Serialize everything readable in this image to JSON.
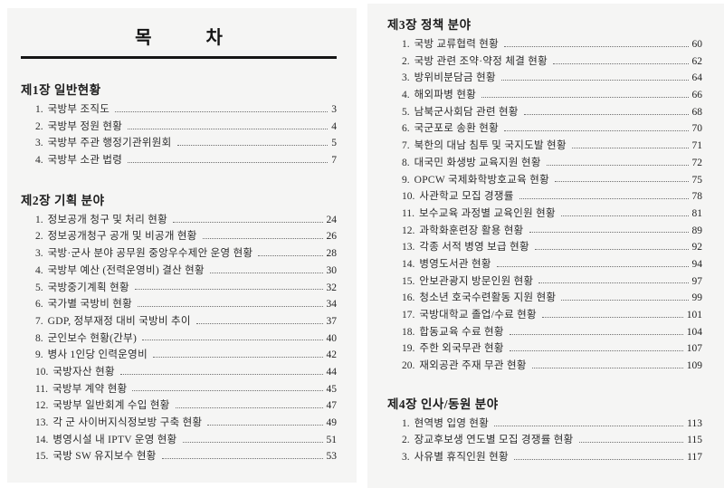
{
  "title": "목            차",
  "colors": {
    "paper": "#f5f5f4",
    "background": "#ffffff",
    "text": "#2b2b2b",
    "rule": "#161616"
  },
  "left_page": {
    "sections": [
      {
        "heading": "제1장 일반현황",
        "items": [
          {
            "no": "1.",
            "title": "국방부 조직도",
            "page": "3"
          },
          {
            "no": "2.",
            "title": "국방부 정원 현황",
            "page": "4"
          },
          {
            "no": "3.",
            "title": "국방부 주관 행정기관위원회",
            "page": "5"
          },
          {
            "no": "4.",
            "title": "국방부 소관 법령",
            "page": "7"
          }
        ]
      },
      {
        "heading": "제2장 기획 분야",
        "items": [
          {
            "no": "1.",
            "title": "정보공개 청구 및 처리 현황",
            "page": "24"
          },
          {
            "no": "2.",
            "title": "정보공개청구 공개 및 비공개 현황",
            "page": "26"
          },
          {
            "no": "3.",
            "title": "국방·군사 분야 공무원 중앙우수제안 운영 현황",
            "page": "28"
          },
          {
            "no": "4.",
            "title": "국방부 예산 (전력운영비) 결산 현황",
            "page": "30"
          },
          {
            "no": "5.",
            "title": "국방중기계획 현황",
            "page": "32"
          },
          {
            "no": "6.",
            "title": "국가별 국방비 현황",
            "page": "34"
          },
          {
            "no": "7.",
            "title": "GDP, 정부재정 대비 국방비 추이",
            "page": "37"
          },
          {
            "no": "8.",
            "title": "군인보수 현황(간부)",
            "page": "40"
          },
          {
            "no": "9.",
            "title": "병사 1인당 인력운영비",
            "page": "42"
          },
          {
            "no": "10.",
            "title": "국방자산 현황",
            "page": "44"
          },
          {
            "no": "11.",
            "title": "국방부 계약 현황",
            "page": "45"
          },
          {
            "no": "12.",
            "title": "국방부 일반회계 수입 현황",
            "page": "47"
          },
          {
            "no": "13.",
            "title": "각 군 사이버지식정보방 구축 현황",
            "page": "49"
          },
          {
            "no": "14.",
            "title": "병영시설 내 IPTV 운영 현황",
            "page": "51"
          },
          {
            "no": "15.",
            "title": "국방 SW 유지보수 현황",
            "page": "53"
          }
        ]
      }
    ]
  },
  "right_page": {
    "sections": [
      {
        "heading": "제3장 정책 분야",
        "items": [
          {
            "no": "1.",
            "title": "국방 교류협력 현황",
            "page": "60"
          },
          {
            "no": "2.",
            "title": "국방 관련 조약·약정 체결 현황",
            "page": "62"
          },
          {
            "no": "3.",
            "title": "방위비분담금 현황",
            "page": "64"
          },
          {
            "no": "4.",
            "title": "해외파병 현황",
            "page": "66"
          },
          {
            "no": "5.",
            "title": "남북군사회담 관련 현황",
            "page": "68"
          },
          {
            "no": "6.",
            "title": "국군포로 송환 현황",
            "page": "70"
          },
          {
            "no": "7.",
            "title": "북한의 대남 침투 및 국지도발 현황",
            "page": "71"
          },
          {
            "no": "8.",
            "title": "대국민 화생방 교육지원 현황",
            "page": "72"
          },
          {
            "no": "9.",
            "title": "OPCW 국제화학방호교육 현황",
            "page": "75"
          },
          {
            "no": "10.",
            "title": "사관학교 모집 경쟁률",
            "page": "78"
          },
          {
            "no": "11.",
            "title": "보수교육 과정별 교육인원 현황",
            "page": "81"
          },
          {
            "no": "12.",
            "title": "과학화훈련장 활용 현황",
            "page": "89"
          },
          {
            "no": "13.",
            "title": "각종 서적 병영 보급 현황",
            "page": "92"
          },
          {
            "no": "14.",
            "title": "병영도서관 현황",
            "page": "94"
          },
          {
            "no": "15.",
            "title": "안보관광지 방문인원 현황",
            "page": "97"
          },
          {
            "no": "16.",
            "title": "청소년 호국수련활동 지원 현황",
            "page": "99"
          },
          {
            "no": "17.",
            "title": "국방대학교 졸업/수료 현황",
            "page": "101"
          },
          {
            "no": "18.",
            "title": "합동교육 수료 현황",
            "page": "104"
          },
          {
            "no": "19.",
            "title": "주한 외국무관 현황",
            "page": "107"
          },
          {
            "no": "20.",
            "title": "재외공관 주재 무관 현황",
            "page": "109"
          }
        ]
      },
      {
        "heading": "제4장 인사/동원 분야",
        "items": [
          {
            "no": "1.",
            "title": "현역병 입영 현황",
            "page": "113"
          },
          {
            "no": "2.",
            "title": "장교후보생 연도별 모집 경쟁률 현황",
            "page": "115"
          },
          {
            "no": "3.",
            "title": "사유별 휴직인원 현황",
            "page": "117"
          }
        ]
      }
    ]
  }
}
